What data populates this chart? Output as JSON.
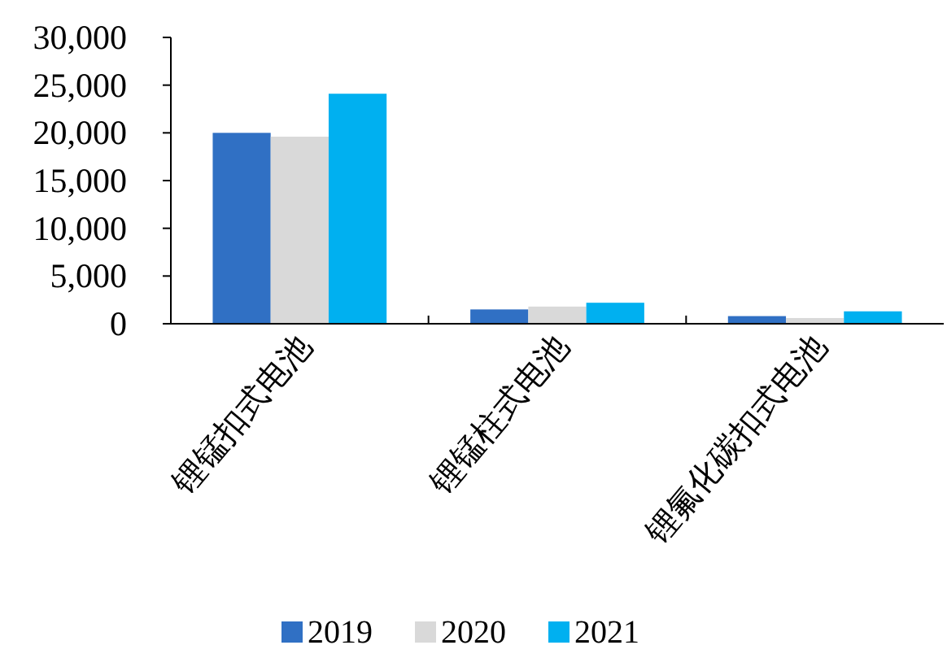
{
  "chart_data": {
    "type": "bar",
    "categories": [
      "锂锰扣式电池",
      "锂锰柱式电池",
      "锂氟化碳扣式电池"
    ],
    "series": [
      {
        "name": "2019",
        "color": "#3070c4",
        "values": [
          20000,
          1500,
          800
        ]
      },
      {
        "name": "2020",
        "color": "#d9d9d9",
        "values": [
          19600,
          1800,
          600
        ]
      },
      {
        "name": "2021",
        "color": "#00b0f0",
        "values": [
          24100,
          2200,
          1300
        ]
      }
    ],
    "ylim": [
      0,
      30000
    ],
    "yticks": [
      {
        "value": 0,
        "label": "0"
      },
      {
        "value": 5000,
        "label": "5,000"
      },
      {
        "value": 10000,
        "label": "10,000"
      },
      {
        "value": 15000,
        "label": "15,000"
      },
      {
        "value": 20000,
        "label": "20,000"
      },
      {
        "value": 25000,
        "label": "25,000"
      },
      {
        "value": 30000,
        "label": "30,000"
      }
    ],
    "grid": false,
    "legend": "bottom"
  }
}
